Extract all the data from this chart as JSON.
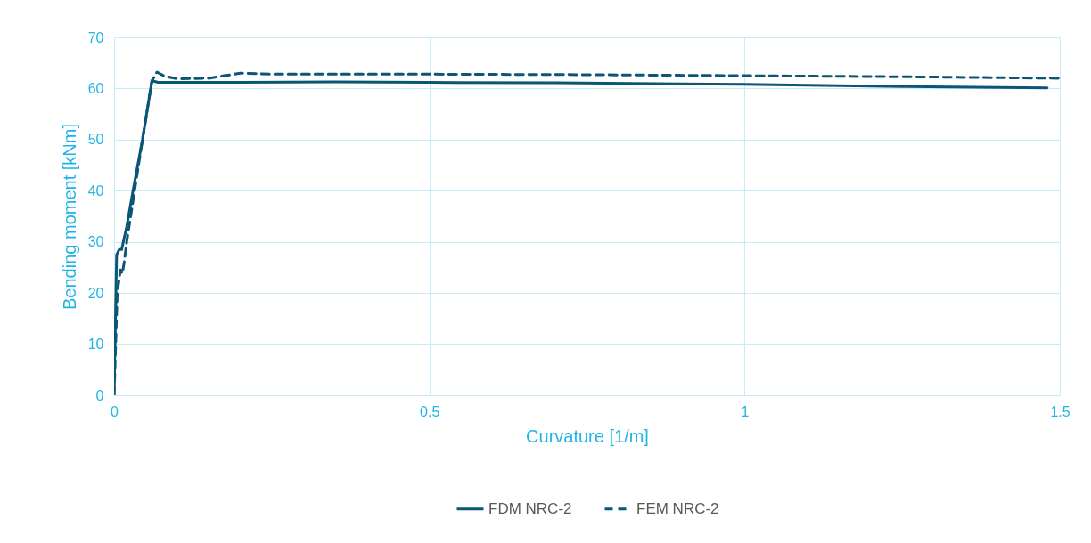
{
  "chart_data": {
    "type": "line",
    "xlabel": "Curvature [1/m]",
    "ylabel": "Bending moment [kNm]",
    "xlim": [
      0,
      1.5
    ],
    "xticks": [
      0,
      0.5,
      1,
      1.5
    ],
    "ylim": [
      0,
      70
    ],
    "yticks": [
      0,
      10,
      20,
      30,
      40,
      50,
      60,
      70
    ],
    "grid": true,
    "legend": "bottom",
    "series": [
      {
        "name": "FDM NRC-2",
        "color": "#0b5577",
        "line_style": "solid",
        "x": [
          0,
          0.004,
          0.008,
          0.012,
          0.02,
          0.03,
          0.045,
          0.06,
          0.07,
          0.2,
          0.35,
          0.5,
          0.7,
          1,
          1.25,
          1.48
        ],
        "values": [
          0,
          27.5,
          28.5,
          28.5,
          33,
          40,
          50,
          61.5,
          61.2,
          61.2,
          61.3,
          61.2,
          61.1,
          60.8,
          60.4,
          60.1
        ]
      },
      {
        "name": "FEM NRC-2",
        "color": "#0b5577",
        "line_style": "dashed",
        "x": [
          0,
          0.005,
          0.01,
          0.013,
          0.016,
          0.02,
          0.025,
          0.03,
          0.045,
          0.06,
          0.068,
          0.08,
          0.1,
          0.15,
          0.2,
          0.25,
          0.5,
          0.75,
          1,
          1.25,
          1.5
        ],
        "values": [
          0,
          20,
          24.5,
          23.8,
          26,
          30,
          34,
          38,
          50,
          61.5,
          63.2,
          62.4,
          61.9,
          62,
          63,
          62.8,
          62.8,
          62.7,
          62.5,
          62.3,
          62
        ]
      }
    ]
  }
}
